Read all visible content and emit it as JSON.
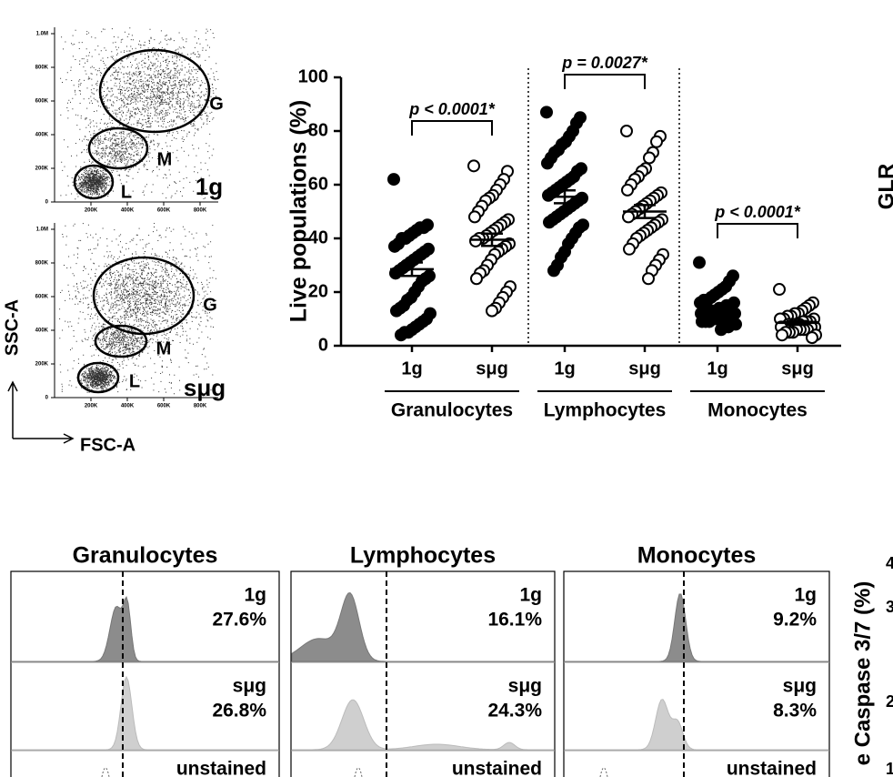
{
  "gating": {
    "y_label": "SSC-A",
    "x_label": "FSC-A",
    "yticks": [
      "0",
      "200K",
      "400K",
      "600K",
      "800K",
      "1.0M"
    ],
    "xticks": [
      "200K",
      "400K",
      "600K",
      "800K"
    ],
    "plots": [
      {
        "label": "1g",
        "gates": [
          "G",
          "M",
          "L"
        ]
      },
      {
        "label": "sμg",
        "gates": [
          "G",
          "M",
          "L"
        ]
      }
    ]
  },
  "chart_data": {
    "type": "strip",
    "ylabel": "Live populations (%)",
    "ylim": [
      0,
      100
    ],
    "yticks": [
      0,
      20,
      40,
      60,
      80,
      100
    ],
    "groups": [
      {
        "name": "Granulocytes",
        "annotation": "p < 0.0001*"
      },
      {
        "name": "Lymphocytes",
        "annotation": "p = 0.0027*"
      },
      {
        "name": "Monocytes",
        "annotation": "p < 0.0001*"
      }
    ],
    "series": [
      {
        "name": "1g",
        "color": "#000000",
        "mean": 28.5,
        "sem": 2.5,
        "values": [
          62,
          45,
          44,
          44,
          43,
          42,
          41,
          40,
          40,
          38,
          37,
          36,
          35,
          34,
          33,
          32,
          31,
          30,
          29,
          28,
          27,
          26,
          25,
          24,
          22,
          20,
          18,
          17,
          15,
          14,
          13,
          12,
          10,
          9,
          8,
          7,
          6,
          5,
          5,
          4
        ]
      },
      {
        "name": "sμg",
        "color": "#ffffff",
        "mean": 39.5,
        "sem": 2.3,
        "values": [
          67,
          65,
          62,
          60,
          58,
          56,
          55,
          54,
          52,
          50,
          48,
          47,
          46,
          45,
          44,
          43,
          42,
          41,
          40,
          40,
          39,
          38,
          37,
          36,
          35,
          34,
          32,
          30,
          28,
          27,
          25,
          22,
          20,
          18,
          16,
          14,
          13
        ]
      },
      {
        "name": "1g",
        "color": "#000000",
        "mean": 55.5,
        "sem": 2.4,
        "values": [
          87,
          85,
          83,
          80,
          78,
          76,
          75,
          73,
          72,
          70,
          68,
          66,
          65,
          63,
          62,
          61,
          60,
          59,
          58,
          57,
          56,
          55,
          54,
          53,
          52,
          51,
          50,
          49,
          48,
          47,
          46,
          45,
          44,
          42,
          40,
          38,
          35,
          33,
          30,
          28
        ]
      },
      {
        "name": "sμg",
        "color": "#ffffff",
        "mean": 50,
        "sem": 2.4,
        "values": [
          80,
          78,
          76,
          72,
          70,
          66,
          65,
          63,
          62,
          60,
          58,
          57,
          56,
          55,
          54,
          53,
          52,
          51,
          50,
          49,
          48,
          47,
          46,
          45,
          44,
          43,
          42,
          41,
          40,
          38,
          36,
          34,
          32,
          30,
          28,
          25
        ]
      },
      {
        "name": "1g",
        "color": "#000000",
        "mean": 13,
        "sem": 0.9,
        "values": [
          31,
          26,
          24,
          22,
          21,
          20,
          19,
          18,
          17,
          17,
          16,
          16,
          15,
          15,
          14,
          14,
          13,
          13,
          13,
          12,
          12,
          12,
          11,
          11,
          11,
          10,
          10,
          10,
          9,
          9,
          9,
          8,
          8,
          7,
          7,
          6
        ]
      },
      {
        "name": "sμg",
        "color": "#ffffff",
        "mean": 8.5,
        "sem": 0.7,
        "values": [
          21,
          16,
          15,
          14,
          13,
          12,
          12,
          11,
          11,
          10,
          10,
          10,
          9,
          9,
          9,
          8,
          8,
          8,
          8,
          7,
          7,
          7,
          7,
          6,
          6,
          6,
          6,
          5,
          5,
          5,
          4,
          4,
          3
        ]
      }
    ]
  },
  "histograms": [
    {
      "title": "Granulocytes",
      "rows": [
        {
          "label": "1g",
          "value": "27.6%"
        },
        {
          "label": "sμg",
          "value": "26.8%"
        },
        {
          "label": "unstained"
        }
      ]
    },
    {
      "title": "Lymphocytes",
      "rows": [
        {
          "label": "1g",
          "value": "16.1%"
        },
        {
          "label": "sμg",
          "value": "24.3%"
        },
        {
          "label": "unstained"
        }
      ]
    },
    {
      "title": "Monocytes",
      "rows": [
        {
          "label": "1g",
          "value": "9.2%"
        },
        {
          "label": "sμg",
          "value": "8.3%"
        },
        {
          "label": "unstained"
        }
      ]
    }
  ],
  "fragments": {
    "top_right": "GLR",
    "caspase_label": "e Caspase 3/7 (%)",
    "caspase_ticks": [
      "4",
      "3",
      "2",
      "1"
    ]
  }
}
